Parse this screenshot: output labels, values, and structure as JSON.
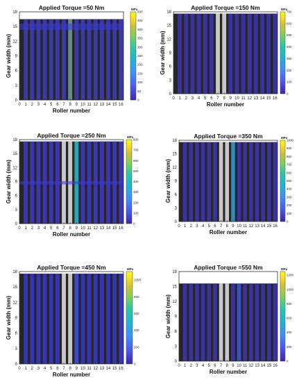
{
  "chart_data": [
    {
      "type": "heatmap",
      "title": "Applied Torque =50 Nm",
      "xlabel": "Roller number",
      "ylabel": "Gear width (mm)",
      "xticks": [
        "0",
        "1",
        "2",
        "3",
        "4",
        "5",
        "6",
        "7",
        "8",
        "9",
        "10",
        "11",
        "12",
        "13",
        "14",
        "15",
        "16"
      ],
      "yticks": [
        "0",
        "3",
        "6",
        "9",
        "12",
        "15",
        "18"
      ],
      "xlim": [
        0,
        16.4
      ],
      "ylim": [
        0,
        18
      ],
      "colorbar_label": "MPa",
      "colorbar_ticks": [
        "0",
        "50",
        "100",
        "150",
        "200",
        "250",
        "300",
        "350",
        "400",
        "450",
        "500"
      ],
      "colorbar_range": [
        0,
        500
      ],
      "rollers": [
        1,
        2,
        3,
        4,
        5,
        6,
        7,
        8,
        9,
        10,
        11,
        12,
        13,
        14,
        15,
        16
      ],
      "contact_length_mm": 16.5,
      "peak_stress_MPa": [
        25,
        30,
        30,
        30,
        35,
        40,
        55,
        60,
        40,
        35,
        30,
        30,
        30,
        30,
        30,
        25
      ],
      "roller_colors": [
        "#3a3aa0",
        "#3a3aa0",
        "#3a3aa0",
        "#3a3aa0",
        "#3a3aa0",
        "#3a3aa0",
        "#3a3aa0",
        "#6a8a8a",
        "#3a3aa0",
        "#3a3aa0",
        "#3a3aa0",
        "#3a3aa0",
        "#3a3aa0",
        "#3a3aa0",
        "#3a3aa0",
        "#3a3aa0"
      ],
      "band_mm": [
        14.3,
        15.6
      ]
    },
    {
      "type": "heatmap",
      "title": "Applied Torque =150 Nm",
      "xlabel": "Roller number",
      "ylabel": "Gear width (mm)",
      "xticks": [
        "0",
        "1",
        "2",
        "3",
        "4",
        "5",
        "6",
        "7",
        "8",
        "9",
        "10",
        "11",
        "12",
        "13",
        "14",
        "15",
        "16"
      ],
      "yticks": [
        "0",
        "3",
        "6",
        "9",
        "12",
        "15",
        "18"
      ],
      "xlim": [
        0,
        16.4
      ],
      "ylim": [
        0,
        18
      ],
      "colorbar_label": "MPa",
      "colorbar_ticks": [
        "0",
        "100",
        "200",
        "300",
        "400",
        "500",
        "600",
        "700"
      ],
      "colorbar_range": [
        0,
        700
      ],
      "rollers": [
        1,
        2,
        3,
        4,
        5,
        6,
        7,
        8,
        9,
        10,
        11,
        12,
        13,
        14,
        15,
        16
      ],
      "contact_length_mm": 17.6,
      "peak_stress_MPa": [
        30,
        30,
        30,
        30,
        35,
        40,
        60,
        70,
        50,
        40,
        35,
        30,
        30,
        30,
        30,
        30
      ],
      "roller_colors": [
        "#3b32a0",
        "#3b32a0",
        "#3b32a0",
        "#3b32a0",
        "#3b32a0",
        "#3b32a0",
        "#c8c8c8",
        "#c8c8c8",
        "#3b32a0",
        "#3b32a0",
        "#3b32a0",
        "#3b32a0",
        "#3b32a0",
        "#3b32a0",
        "#3b32a0",
        "#3b32a0"
      ],
      "band_mm": null
    },
    {
      "type": "heatmap",
      "title": "Applied Torque =250 Nm",
      "xlabel": "Roller number",
      "ylabel": "Gear width (mm)",
      "xticks": [
        "0",
        "1",
        "2",
        "3",
        "4",
        "5",
        "6",
        "7",
        "8",
        "9",
        "10",
        "11",
        "12",
        "13",
        "14",
        "15",
        "16"
      ],
      "yticks": [
        "0",
        "3",
        "6",
        "9",
        "12",
        "15",
        "18"
      ],
      "xlim": [
        0,
        16.4
      ],
      "ylim": [
        0,
        18
      ],
      "colorbar_label": "MPa",
      "colorbar_ticks": [
        "0",
        "100",
        "200",
        "300",
        "400",
        "500",
        "600",
        "700",
        "800"
      ],
      "colorbar_range": [
        0,
        800
      ],
      "rollers": [
        1,
        2,
        3,
        4,
        5,
        6,
        7,
        8,
        9,
        10,
        11,
        12,
        13,
        14,
        15,
        16
      ],
      "contact_length_mm": 17.6,
      "peak_stress_MPa": [
        40,
        40,
        40,
        40,
        45,
        60,
        90,
        110,
        450,
        60,
        45,
        40,
        40,
        40,
        40,
        40
      ],
      "roller_colors": [
        "#3b35b0",
        "#3b35b0",
        "#3b35b0",
        "#3b35b0",
        "#3b35b0",
        "#3b35b0",
        "#c8c8c8",
        "#c8c8c8",
        "#28a6b4",
        "#3b35b0",
        "#3b35b0",
        "#3b35b0",
        "#3b35b0",
        "#3b35b0",
        "#3b35b0",
        "#3b35b0"
      ],
      "band_mm": [
        8.4,
        9.1
      ]
    },
    {
      "type": "heatmap",
      "title": "Applied Torque =350 Nm",
      "xlabel": "Roller number",
      "ylabel": "Gear width (mm)",
      "xticks": [
        "0",
        "1",
        "2",
        "3",
        "4",
        "5",
        "6",
        "7",
        "8",
        "9",
        "10",
        "11",
        "12",
        "13",
        "14",
        "15",
        "16"
      ],
      "yticks": [
        "0",
        "3",
        "6",
        "9",
        "12",
        "15",
        "18"
      ],
      "xlim": [
        0,
        16.4
      ],
      "ylim": [
        0,
        18
      ],
      "colorbar_label": "MPa",
      "colorbar_ticks": [
        "0",
        "100",
        "200",
        "300",
        "400",
        "500",
        "600",
        "700",
        "800",
        "900",
        "1000"
      ],
      "colorbar_range": [
        0,
        1000
      ],
      "rollers": [
        1,
        2,
        3,
        4,
        5,
        6,
        7,
        8,
        9,
        10,
        11,
        12,
        13,
        14,
        15,
        16
      ],
      "contact_length_mm": 17.6,
      "peak_stress_MPa": [
        40,
        40,
        40,
        40,
        45,
        60,
        90,
        110,
        350,
        60,
        45,
        40,
        40,
        40,
        40,
        40
      ],
      "roller_colors": [
        "#3b32a0",
        "#3b32a0",
        "#3b32a0",
        "#3b32a0",
        "#3b32a0",
        "#3b32a0",
        "#c8c8c8",
        "#c8c8c8",
        "#2a8fb4",
        "#3b32a0",
        "#3b32a0",
        "#3b32a0",
        "#3b32a0",
        "#3b32a0",
        "#3b32a0",
        "#3b32a0"
      ],
      "band_mm": null
    },
    {
      "type": "heatmap",
      "title": "Applied Torque =450 Nm",
      "xlabel": "Roller number",
      "ylabel": "Gear width (mm)",
      "xticks": [
        "0",
        "1",
        "2",
        "3",
        "4",
        "5",
        "6",
        "7",
        "8",
        "9",
        "10",
        "11",
        "12",
        "13",
        "14",
        "15",
        "16"
      ],
      "yticks": [
        "0",
        "3",
        "6",
        "9",
        "12",
        "15",
        "18"
      ],
      "xlim": [
        0,
        16.4
      ],
      "ylim": [
        0,
        18
      ],
      "colorbar_label": "MPa",
      "colorbar_ticks": [
        "0",
        "200",
        "400",
        "600",
        "800",
        "1000"
      ],
      "colorbar_range": [
        0,
        1100
      ],
      "rollers": [
        1,
        2,
        3,
        4,
        5,
        6,
        7,
        8,
        9,
        10,
        11,
        12,
        13,
        14,
        15,
        16
      ],
      "contact_length_mm": 17.6,
      "peak_stress_MPa": [
        50,
        50,
        50,
        50,
        60,
        80,
        120,
        150,
        250,
        80,
        60,
        50,
        50,
        50,
        50,
        50
      ],
      "roller_colors": [
        "#3535b4",
        "#3535b4",
        "#3535b4",
        "#3535b4",
        "#3535b4",
        "#3535b4",
        "#c8c8c8",
        "#c8c8c8",
        "#3a4cc8",
        "#3535b4",
        "#3535b4",
        "#3535b4",
        "#3535b4",
        "#3535b4",
        "#3535b4",
        "#3535b4"
      ],
      "band_mm": null
    },
    {
      "type": "heatmap",
      "title": "Applied Torque =550 Nm",
      "xlabel": "Roller number",
      "ylabel": "Gear width (mm)",
      "xticks": [
        "0",
        "1",
        "2",
        "3",
        "4",
        "5",
        "6",
        "7",
        "8",
        "9",
        "10",
        "11",
        "12",
        "13",
        "14",
        "15",
        "16"
      ],
      "yticks": [
        "0",
        "3",
        "6",
        "9",
        "12",
        "15",
        "18"
      ],
      "xlim": [
        0,
        16.4
      ],
      "ylim": [
        0,
        18
      ],
      "colorbar_label": "MPa",
      "colorbar_ticks": [
        "0",
        "200",
        "400",
        "600",
        "800",
        "1000",
        "1200"
      ],
      "colorbar_range": [
        0,
        1250
      ],
      "rollers": [
        1,
        2,
        3,
        4,
        5,
        6,
        7,
        8,
        9,
        10,
        11,
        12,
        13,
        14,
        15,
        16
      ],
      "contact_length_mm": 15.6,
      "peak_stress_MPa": [
        50,
        50,
        50,
        50,
        60,
        80,
        120,
        160,
        200,
        100,
        60,
        50,
        50,
        50,
        50,
        50
      ],
      "roller_colors": [
        "#3b32a0",
        "#3b32a0",
        "#3b32a0",
        "#3b32a0",
        "#3b32a0",
        "#3b32a0",
        "#c8c8c8",
        "#c8c8c8",
        "#3b32a0",
        "#3a52c0",
        "#3b32a0",
        "#3b32a0",
        "#3b32a0",
        "#3b32a0",
        "#3b32a0",
        "#3b32a0"
      ],
      "band_mm": null
    }
  ],
  "colors": {
    "gap": "#262626",
    "axes_frame": "#333333",
    "colormap": [
      "#3e26a8",
      "#4b58f4",
      "#3e8ffd",
      "#1fb5d4",
      "#2fc8a0",
      "#7ed05c",
      "#cfc03a",
      "#f7e020",
      "#f9fb14"
    ]
  }
}
